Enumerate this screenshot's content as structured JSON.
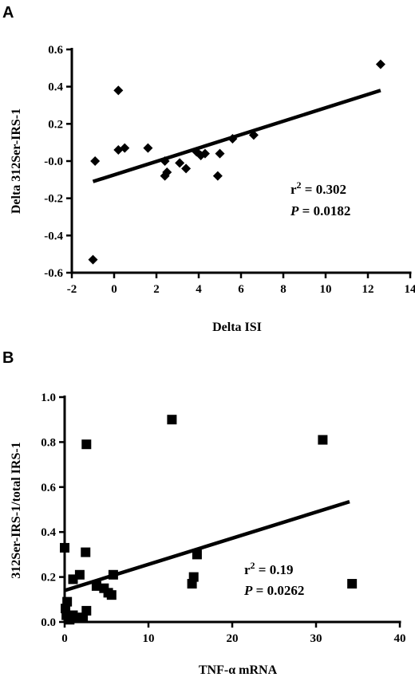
{
  "chart_data": [
    {
      "panel": "A",
      "type": "scatter",
      "marker": "diamond",
      "xlabel": "Delta ISI",
      "ylabel": "Delta 312Ser-IRS-1",
      "xlim": [
        -2,
        14
      ],
      "ylim": [
        -0.6,
        0.6
      ],
      "xticks": [
        "-2",
        "0",
        "2",
        "4",
        "6",
        "8",
        "10",
        "12",
        "14"
      ],
      "xtick_values": [
        -2,
        0,
        2,
        4,
        6,
        8,
        10,
        12,
        14
      ],
      "yticks": [
        "-0.6",
        "-0.4",
        "-0.2",
        "-0.0",
        "0.2",
        "0.4",
        "0.6"
      ],
      "ytick_values": [
        -0.6,
        -0.4,
        -0.2,
        0.0,
        0.2,
        0.4,
        0.6
      ],
      "points": [
        {
          "x": 0.2,
          "y": 0.38
        },
        {
          "x": -0.9,
          "y": 0.0
        },
        {
          "x": 0.2,
          "y": 0.06
        },
        {
          "x": 0.5,
          "y": 0.07
        },
        {
          "x": 1.6,
          "y": 0.07
        },
        {
          "x": 2.4,
          "y": 0.0
        },
        {
          "x": 2.5,
          "y": -0.06
        },
        {
          "x": 2.4,
          "y": -0.08
        },
        {
          "x": 3.1,
          "y": -0.01
        },
        {
          "x": 3.4,
          "y": -0.04
        },
        {
          "x": 3.9,
          "y": 0.05
        },
        {
          "x": 4.1,
          "y": 0.03
        },
        {
          "x": 4.3,
          "y": 0.04
        },
        {
          "x": 4.9,
          "y": -0.08
        },
        {
          "x": 5.0,
          "y": 0.04
        },
        {
          "x": 5.6,
          "y": 0.12
        },
        {
          "x": 6.6,
          "y": 0.14
        },
        {
          "x": 12.6,
          "y": 0.52
        },
        {
          "x": -1.0,
          "y": -0.53
        }
      ],
      "fit": {
        "x1": -1.0,
        "y1": -0.11,
        "x2": 12.6,
        "y2": 0.38
      },
      "r2_label": "r",
      "r2_sup": "2",
      "r2_value": " = 0.302",
      "p_label": "P",
      "p_value": " = 0.0182",
      "grid": false
    },
    {
      "panel": "B",
      "type": "scatter",
      "marker": "square",
      "xlabel": "TNF-α mRNA",
      "ylabel": "312Ser-IRS-1/total IRS-1",
      "xlim": [
        0,
        40
      ],
      "ylim": [
        0.0,
        1.0
      ],
      "xticks": [
        "0",
        "10",
        "20",
        "30",
        "40"
      ],
      "xtick_values": [
        0,
        10,
        20,
        30,
        40
      ],
      "yticks": [
        "0.0",
        "0.2",
        "0.4",
        "0.6",
        "0.8",
        "1.0"
      ],
      "ytick_values": [
        0.0,
        0.2,
        0.4,
        0.6,
        0.8,
        1.0
      ],
      "points": [
        {
          "x": 12.8,
          "y": 0.9
        },
        {
          "x": 30.8,
          "y": 0.81
        },
        {
          "x": 2.6,
          "y": 0.79
        },
        {
          "x": 0.0,
          "y": 0.33
        },
        {
          "x": 2.5,
          "y": 0.31
        },
        {
          "x": 15.8,
          "y": 0.3
        },
        {
          "x": 1.8,
          "y": 0.21
        },
        {
          "x": 5.8,
          "y": 0.21
        },
        {
          "x": 15.4,
          "y": 0.2
        },
        {
          "x": 1.0,
          "y": 0.19
        },
        {
          "x": 15.2,
          "y": 0.17
        },
        {
          "x": 34.3,
          "y": 0.17
        },
        {
          "x": 3.8,
          "y": 0.16
        },
        {
          "x": 4.7,
          "y": 0.15
        },
        {
          "x": 5.2,
          "y": 0.13
        },
        {
          "x": 5.6,
          "y": 0.12
        },
        {
          "x": 0.3,
          "y": 0.09
        },
        {
          "x": 0.1,
          "y": 0.06
        },
        {
          "x": 2.6,
          "y": 0.05
        },
        {
          "x": 1.0,
          "y": 0.03
        },
        {
          "x": 0.2,
          "y": 0.03
        },
        {
          "x": 1.6,
          "y": 0.02
        },
        {
          "x": 2.2,
          "y": 0.02
        },
        {
          "x": 0.6,
          "y": 0.01
        }
      ],
      "fit": {
        "x1": 0.0,
        "y1": 0.14,
        "x2": 34.0,
        "y2": 0.535
      },
      "r2_label": "r",
      "r2_sup": "2",
      "r2_value": " = 0.19",
      "p_label": "P",
      "p_value": " = 0.0262",
      "grid": false
    }
  ]
}
